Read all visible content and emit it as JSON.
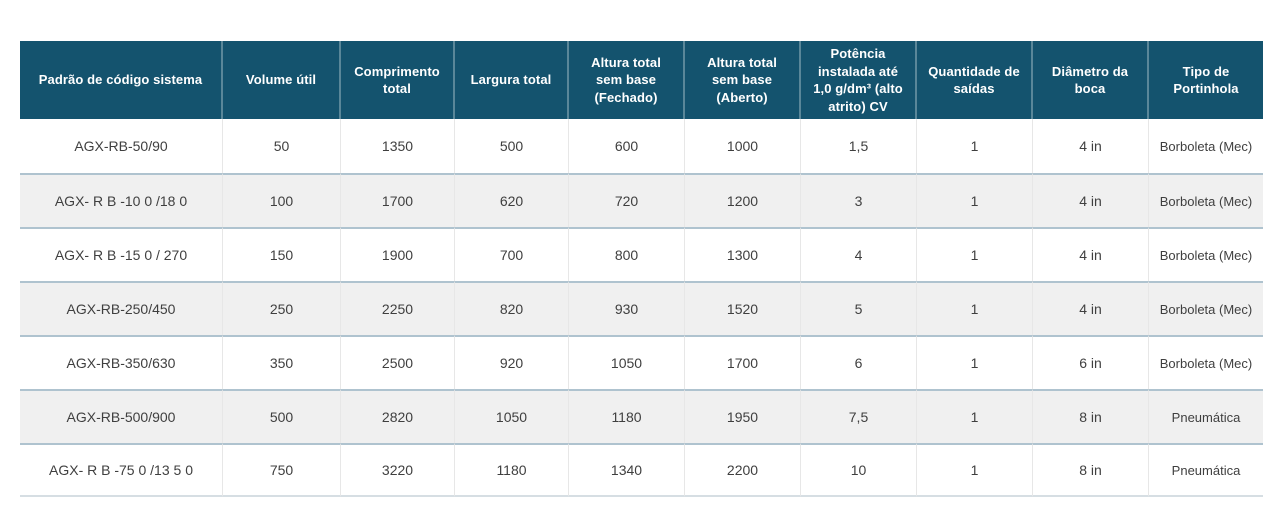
{
  "colors": {
    "header_bg": "#14536E",
    "header_text": "#ffffff",
    "row_bg": "#ffffff",
    "row_alt_bg": "#f0f0f0",
    "row_divider": "#afc3cf",
    "column_divider": "#e7e7e7",
    "body_text": "#3f3f3f"
  },
  "table": {
    "headers": [
      "Padrão de código sistema",
      "Volume útil",
      "Comprimento total",
      "Largura total",
      "Altura total sem base (Fechado)",
      "Altura total sem base (Aberto)",
      "Potência instalada até 1,0 g/dm³ (alto atrito) CV",
      "Quantidade de saídas",
      "Diâmetro da boca",
      "Tipo de Portinhola"
    ],
    "rows": [
      [
        "AGX-RB-50/90",
        "50",
        "1350",
        "500",
        "600",
        "1000",
        "1,5",
        "1",
        "4 in",
        "Borboleta (Mec)"
      ],
      [
        "AGX- R B -10 0 /18 0",
        "100",
        "1700",
        "620",
        "720",
        "1200",
        "3",
        "1",
        "4 in",
        "Borboleta (Mec)"
      ],
      [
        "AGX- R B -15 0 / 270",
        "150",
        "1900",
        "700",
        "800",
        "1300",
        "4",
        "1",
        "4 in",
        "Borboleta (Mec)"
      ],
      [
        "AGX-RB-250/450",
        "250",
        "2250",
        "820",
        "930",
        "1520",
        "5",
        "1",
        "4 in",
        "Borboleta (Mec)"
      ],
      [
        "AGX-RB-350/630",
        "350",
        "2500",
        "920",
        "1050",
        "1700",
        "6",
        "1",
        "6 in",
        "Borboleta (Mec)"
      ],
      [
        "AGX-RB-500/900",
        "500",
        "2820",
        "1050",
        "1180",
        "1950",
        "7,5",
        "1",
        "8 in",
        "Pneumática"
      ],
      [
        "AGX- R B -75 0 /13 5 0",
        "750",
        "3220",
        "1180",
        "1340",
        "2200",
        "10",
        "1",
        "8 in",
        "Pneumática"
      ]
    ]
  }
}
